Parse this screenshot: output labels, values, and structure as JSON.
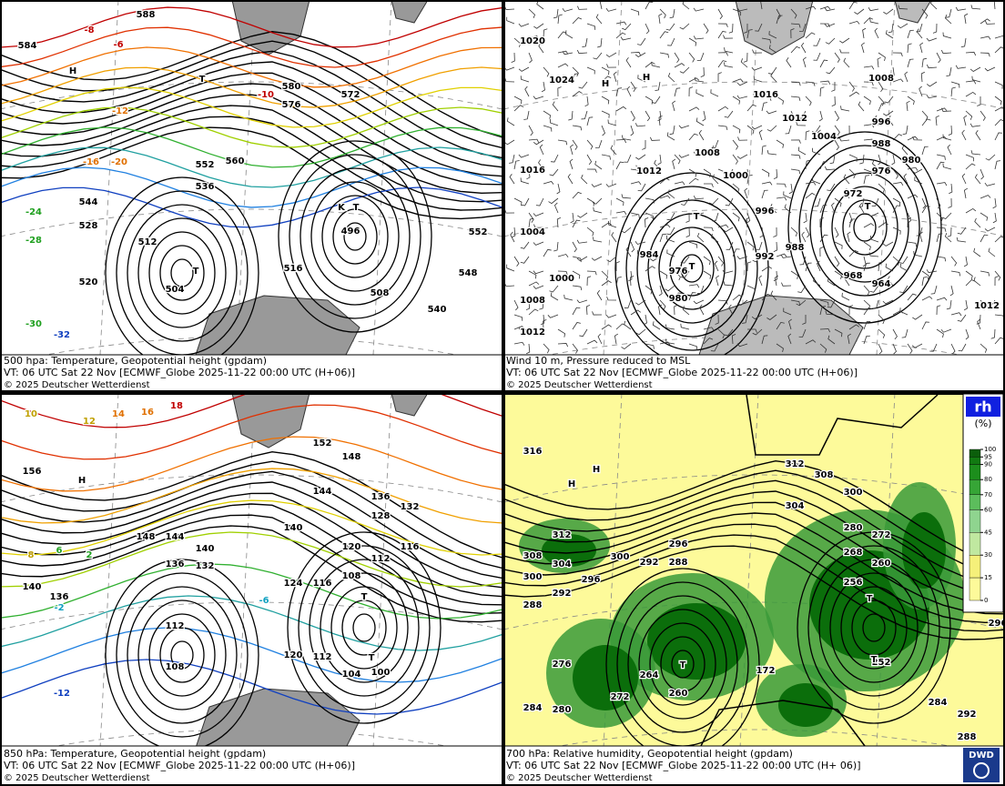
{
  "panels": [
    {
      "caption": [
        "500 hpa: Temperature, Geopotential height (gpdam)",
        "VT: 06 UTC Sat  22 Nov [ECMWF_Globe 2025-11-22 00:00 UTC  (H+06)]",
        "© 2025 Deutscher Wetterdienst"
      ],
      "labels": [
        588,
        584,
        580,
        576,
        572,
        560,
        552,
        544,
        536,
        528,
        520,
        512,
        504,
        496,
        508,
        516,
        540,
        548,
        552,
        -8,
        -6,
        -10,
        -12,
        -16,
        -20,
        -24,
        -28,
        -30,
        -32,
        "H",
        "T",
        "T",
        "T",
        "K"
      ]
    },
    {
      "caption": [
        "Wind 10 m, Pressure reduced to MSL",
        "VT: 06 UTC Sat  22 Nov [ECMWF_Globe 2025-11-22 00:00 UTC  (H+06)]",
        "© 2025 Deutscher Wetterdienst"
      ],
      "labels": [
        1020,
        1024,
        1016,
        1012,
        1008,
        1000,
        996,
        992,
        988,
        984,
        980,
        976,
        1004,
        1000,
        1008,
        1012,
        972,
        968,
        964,
        1016,
        1012,
        1004,
        996,
        988,
        976,
        980,
        1008,
        1012,
        "H",
        "H",
        "T",
        "T",
        "T"
      ]
    },
    {
      "caption": [
        "850 hPa:  Temperature, Geopotential height (gpdam)",
        "VT: 06 UTC Sat  22 Nov [ECMWF_Globe 2025-11-22 00:00 UTC  (H+06)]",
        "© 2025 Deutscher Wetterdienst"
      ],
      "labels": [
        18,
        16,
        14,
        12,
        10,
        156,
        152,
        148,
        144,
        140,
        136,
        132,
        128,
        120,
        116,
        112,
        108,
        104,
        100,
        148,
        144,
        140,
        136,
        132,
        136,
        140,
        124,
        116,
        112,
        108,
        120,
        112,
        8,
        6,
        2,
        -2,
        -6,
        -12,
        "H",
        "T",
        "T"
      ]
    },
    {
      "caption": [
        "700 hPa:  Relative humidity, Geopotential height (gpdam)",
        "VT: 06 UTC Sat  22 Nov [ECMWF_Globe  2025-11-22 00:00 UTC  (H+ 06)]",
        "© 2025 Deutscher Wetterdienst"
      ],
      "labels": [
        316,
        312,
        308,
        304,
        300,
        296,
        288,
        292,
        280,
        272,
        268,
        260,
        256,
        252,
        312,
        308,
        300,
        296,
        292,
        288,
        300,
        304,
        172,
        260,
        264,
        272,
        276,
        280,
        284,
        284,
        288,
        292,
        296,
        "T",
        "T",
        "T",
        "H",
        "H"
      ]
    }
  ],
  "legend": {
    "title": "rh",
    "unit": "(%)",
    "levels": [
      100,
      95,
      90,
      80,
      70,
      60,
      45,
      30,
      15,
      0
    ]
  },
  "logo": "DWD"
}
